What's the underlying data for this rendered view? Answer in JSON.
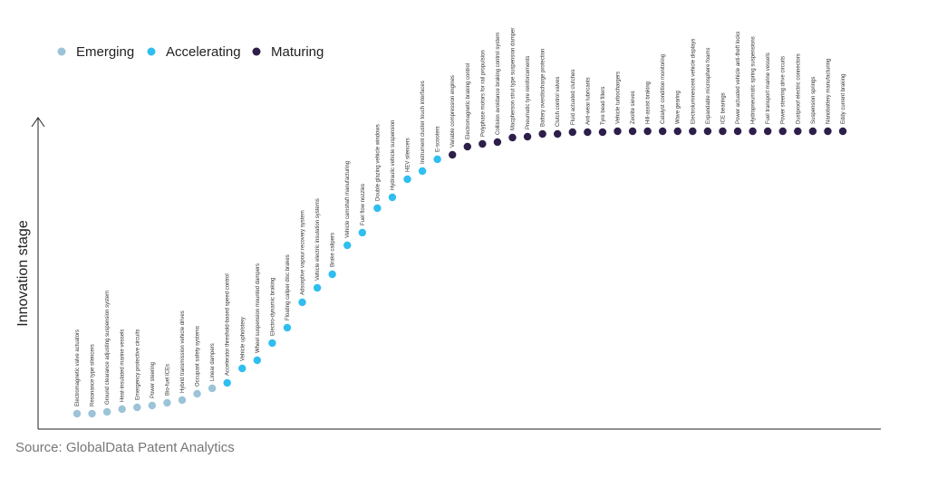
{
  "chart_data": {
    "type": "scatter",
    "y_label": "Innovation stage",
    "source": "Source: GlobalData Patent Analytics",
    "categories": [
      "Electromagnetic valve actuators",
      "Resonance type silencers",
      "Ground clearance adjusting suspension system",
      "Heat-insulated marine vessels",
      "Emergency protective circuits",
      "Power steering",
      "Bio-fuel ICEs",
      "Hybrid transmission vehicle drives",
      "Occupant safety systems",
      "Linear dampers",
      "Accelerator threshold-based speed control",
      "Vehicle upholstery",
      "Wheel suspension mounted dampers",
      "Electro-dynamic braking",
      "Floating caliper disc brakes",
      "Adsorptive vapour recovery system",
      "Vehicle electric insulation systems",
      "Brake calipers",
      "Vehicle camshaft manufacturing",
      "Fuel flow nozzles",
      "Double glazing vehicle windows",
      "Hydraulic vehicle suspension",
      "HEV silencers",
      "Instrument cluster touch interfaces",
      "E-scooters",
      "Variable compression engines",
      "Electromagnetic braking control",
      "Polyphase motors for rail propulsion",
      "Collision avoidance braking control system",
      "Macpherson strut type suspension damper",
      "Pneumatic tyre reinforcements",
      "Battery overdischarge protection",
      "Clutch control valves",
      "Fluid actuated clutches",
      "Anti-wear lubricants",
      "Tyre bead fillers",
      "Vehicle turbochargers",
      "Zeolite sieves",
      "Hill-assist braking",
      "Catalyst condition monitoring",
      "Wave gearing",
      "Electroluminescent vehicle displays",
      "Expandable microsphere foams",
      "ICE bearings",
      "Power actuated vehicle anti-theft locks",
      "Hydropneumatic spring suspensions",
      "Fuel transport marine vessels",
      "Power steering drive circuits",
      "Dustproof electric connectors",
      "Suspension springs",
      "Nanobattery manufacturing",
      "Eddy current braking"
    ],
    "series": [
      {
        "name": "Emerging",
        "color": "#9cc3d8",
        "values": [
          17,
          17,
          19,
          22,
          24,
          26,
          29,
          32,
          39,
          45,
          null,
          null,
          null,
          null,
          null,
          null,
          null,
          null,
          null,
          null,
          null,
          null,
          null,
          null,
          null,
          null,
          null,
          null,
          null,
          null,
          null,
          null,
          null,
          null,
          null,
          null,
          null,
          null,
          null,
          null,
          null,
          null,
          null,
          null,
          null,
          null,
          null,
          null,
          null,
          null,
          null,
          null
        ]
      },
      {
        "name": "Accelerating",
        "color": "#2fbef0",
        "values": [
          null,
          null,
          null,
          null,
          null,
          null,
          null,
          null,
          null,
          null,
          51,
          67,
          76,
          95,
          112,
          140,
          156,
          171,
          203,
          217,
          244,
          256,
          276,
          285,
          298,
          null,
          null,
          null,
          null,
          null,
          null,
          null,
          null,
          null,
          null,
          null,
          null,
          null,
          null,
          null,
          null,
          null,
          null,
          null,
          null,
          null,
          null,
          null,
          null,
          null,
          null,
          null
        ]
      },
      {
        "name": "Maturing",
        "color": "#2d1e4a",
        "values": [
          null,
          null,
          null,
          null,
          null,
          null,
          null,
          null,
          null,
          null,
          null,
          null,
          null,
          null,
          null,
          null,
          null,
          null,
          null,
          null,
          null,
          null,
          null,
          null,
          null,
          303,
          312,
          315,
          317,
          322,
          323,
          326,
          326,
          328,
          328,
          328,
          329,
          329,
          329,
          329,
          329,
          329,
          329,
          329,
          329,
          329,
          329,
          329,
          329,
          329,
          329,
          329
        ]
      }
    ],
    "ylim": [
      0,
      344
    ]
  }
}
